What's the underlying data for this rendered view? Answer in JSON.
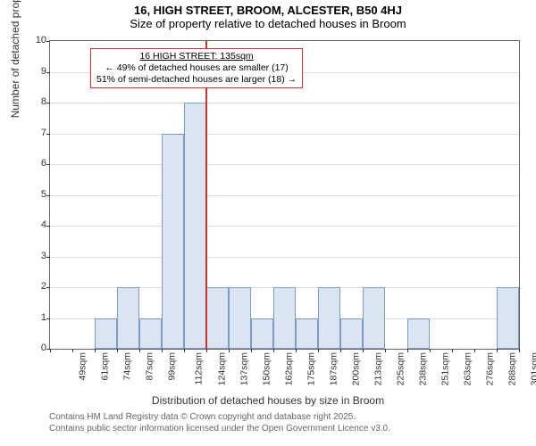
{
  "title_line1": "16, HIGH STREET, BROOM, ALCESTER, B50 4HJ",
  "title_line2": "Size of property relative to detached houses in Broom",
  "ylabel": "Number of detached properties",
  "xlabel": "Distribution of detached houses by size in Broom",
  "chart": {
    "type": "histogram",
    "ylim": [
      0,
      10
    ],
    "ytick_step": 1,
    "bar_fill": "#dbe5f1",
    "bar_border": "#7a9cc6",
    "grid_color": "#e0e0e0",
    "background": "#ffffff",
    "refline_color": "#d03030",
    "refline_x_index": 7,
    "x_labels": [
      "49sqm",
      "61sqm",
      "74sqm",
      "87sqm",
      "99sqm",
      "112sqm",
      "124sqm",
      "137sqm",
      "150sqm",
      "162sqm",
      "175sqm",
      "187sqm",
      "200sqm",
      "213sqm",
      "225sqm",
      "238sqm",
      "251sqm",
      "263sqm",
      "276sqm",
      "288sqm",
      "301sqm"
    ],
    "bars": [
      {
        "x": 0,
        "h": 0
      },
      {
        "x": 1,
        "h": 0
      },
      {
        "x": 2,
        "h": 1
      },
      {
        "x": 3,
        "h": 2
      },
      {
        "x": 4,
        "h": 1
      },
      {
        "x": 5,
        "h": 7
      },
      {
        "x": 6,
        "h": 8
      },
      {
        "x": 7,
        "h": 2
      },
      {
        "x": 8,
        "h": 2
      },
      {
        "x": 9,
        "h": 1
      },
      {
        "x": 10,
        "h": 2
      },
      {
        "x": 11,
        "h": 1
      },
      {
        "x": 12,
        "h": 2
      },
      {
        "x": 13,
        "h": 1
      },
      {
        "x": 14,
        "h": 2
      },
      {
        "x": 15,
        "h": 0
      },
      {
        "x": 16,
        "h": 1
      },
      {
        "x": 17,
        "h": 0
      },
      {
        "x": 18,
        "h": 0
      },
      {
        "x": 19,
        "h": 0
      },
      {
        "x": 20,
        "h": 2
      }
    ],
    "x_tick_every": 1
  },
  "annotation": {
    "line1": "16 HIGH STREET: 135sqm",
    "line2": "← 49% of detached houses are smaller (17)",
    "line3": "51% of semi-detached houses are larger (18) →"
  },
  "footer_line1": "Contains HM Land Registry data © Crown copyright and database right 2025.",
  "footer_line2": "Contains public sector information licensed under the Open Government Licence v3.0."
}
